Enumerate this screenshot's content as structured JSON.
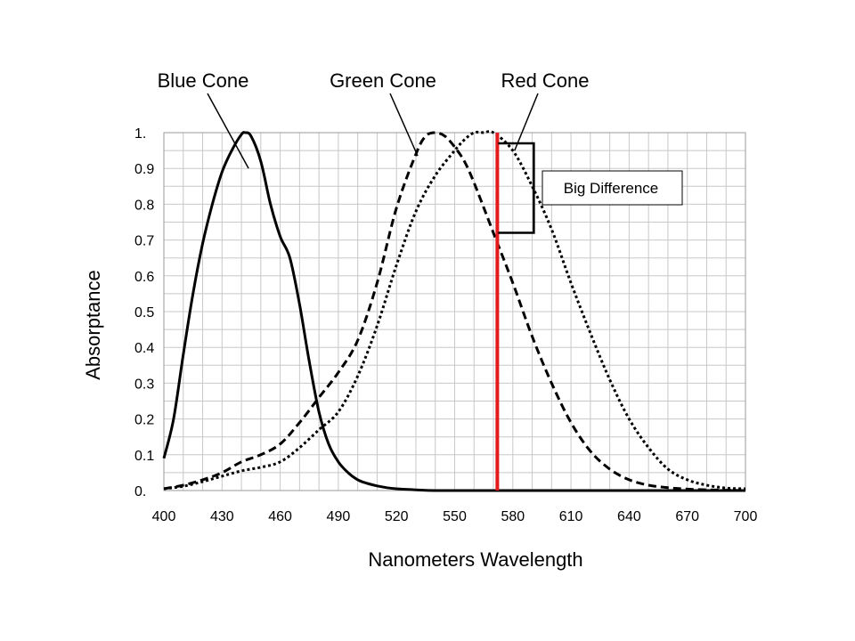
{
  "chart_data": {
    "type": "line",
    "title": "",
    "xlabel": "Nanometers Wavelength",
    "ylabel": "Absorptance",
    "xlim": [
      400,
      700
    ],
    "ylim": [
      0,
      1
    ],
    "grid": true,
    "x_ticks": [
      400,
      430,
      460,
      490,
      520,
      550,
      580,
      610,
      640,
      670,
      700
    ],
    "x_tick_labels": [
      "400",
      "430",
      "460",
      "490",
      "520",
      "550",
      "580",
      "610",
      "640",
      "670",
      "700"
    ],
    "y_ticks": [
      0,
      0.1,
      0.2,
      0.3,
      0.4,
      0.5,
      0.6,
      0.7,
      0.8,
      0.9,
      1
    ],
    "y_tick_labels": [
      "0.",
      "0.1",
      "0.2",
      "0.3",
      "0.4",
      "0.5",
      "0.6",
      "0.7",
      "0.8",
      "0.9",
      "1."
    ],
    "series": [
      {
        "name": "Blue Cone",
        "style": "solid",
        "color": "#000000",
        "x": [
          400,
          405,
          410,
          415,
          420,
          425,
          430,
          435,
          440,
          442,
          445,
          450,
          455,
          460,
          465,
          470,
          475,
          480,
          485,
          490,
          495,
          500,
          505,
          510,
          515,
          520,
          530,
          540,
          560,
          600,
          700
        ],
        "y": [
          0.09,
          0.2,
          0.38,
          0.55,
          0.69,
          0.8,
          0.89,
          0.95,
          0.995,
          1.0,
          0.99,
          0.92,
          0.8,
          0.71,
          0.65,
          0.52,
          0.36,
          0.22,
          0.13,
          0.08,
          0.05,
          0.03,
          0.02,
          0.013,
          0.008,
          0.005,
          0.002,
          0.0,
          0.0,
          0.0,
          0.0
        ]
      },
      {
        "name": "Green Cone",
        "style": "dashed",
        "color": "#000000",
        "x": [
          400,
          410,
          420,
          430,
          440,
          450,
          460,
          470,
          480,
          490,
          500,
          510,
          520,
          530,
          535,
          540,
          545,
          550,
          555,
          560,
          570,
          580,
          590,
          600,
          610,
          620,
          630,
          640,
          650,
          660,
          670,
          680,
          690,
          700
        ],
        "y": [
          0.005,
          0.015,
          0.03,
          0.05,
          0.08,
          0.1,
          0.13,
          0.19,
          0.26,
          0.33,
          0.42,
          0.58,
          0.79,
          0.94,
          0.99,
          1.0,
          0.99,
          0.96,
          0.92,
          0.86,
          0.72,
          0.58,
          0.43,
          0.3,
          0.19,
          0.11,
          0.06,
          0.03,
          0.015,
          0.008,
          0.004,
          0.002,
          0.001,
          0.0
        ]
      },
      {
        "name": "Red Cone",
        "style": "dotted",
        "color": "#000000",
        "x": [
          400,
          410,
          420,
          430,
          440,
          450,
          460,
          470,
          480,
          490,
          500,
          510,
          520,
          530,
          540,
          550,
          555,
          560,
          565,
          570,
          580,
          590,
          600,
          610,
          620,
          630,
          640,
          650,
          660,
          670,
          680,
          690,
          700
        ],
        "y": [
          0.005,
          0.012,
          0.025,
          0.04,
          0.055,
          0.065,
          0.08,
          0.12,
          0.17,
          0.22,
          0.32,
          0.46,
          0.63,
          0.78,
          0.88,
          0.95,
          0.98,
          1.0,
          1.0,
          1.0,
          0.95,
          0.85,
          0.73,
          0.58,
          0.44,
          0.31,
          0.2,
          0.12,
          0.06,
          0.03,
          0.015,
          0.007,
          0.005
        ]
      }
    ],
    "reference_line": {
      "x": 572,
      "color": "#e41a1c"
    },
    "bracket": {
      "x": 572,
      "y_top": 0.97,
      "y_bottom": 0.72
    },
    "annotations": [
      {
        "text": "Blue Cone",
        "points_to": [
          440,
          0.92
        ]
      },
      {
        "text": "Green Cone",
        "points_to": [
          530,
          0.94
        ]
      },
      {
        "text": "Red Cone",
        "points_to": [
          580,
          0.95
        ]
      },
      {
        "text": "Big Difference"
      }
    ]
  }
}
